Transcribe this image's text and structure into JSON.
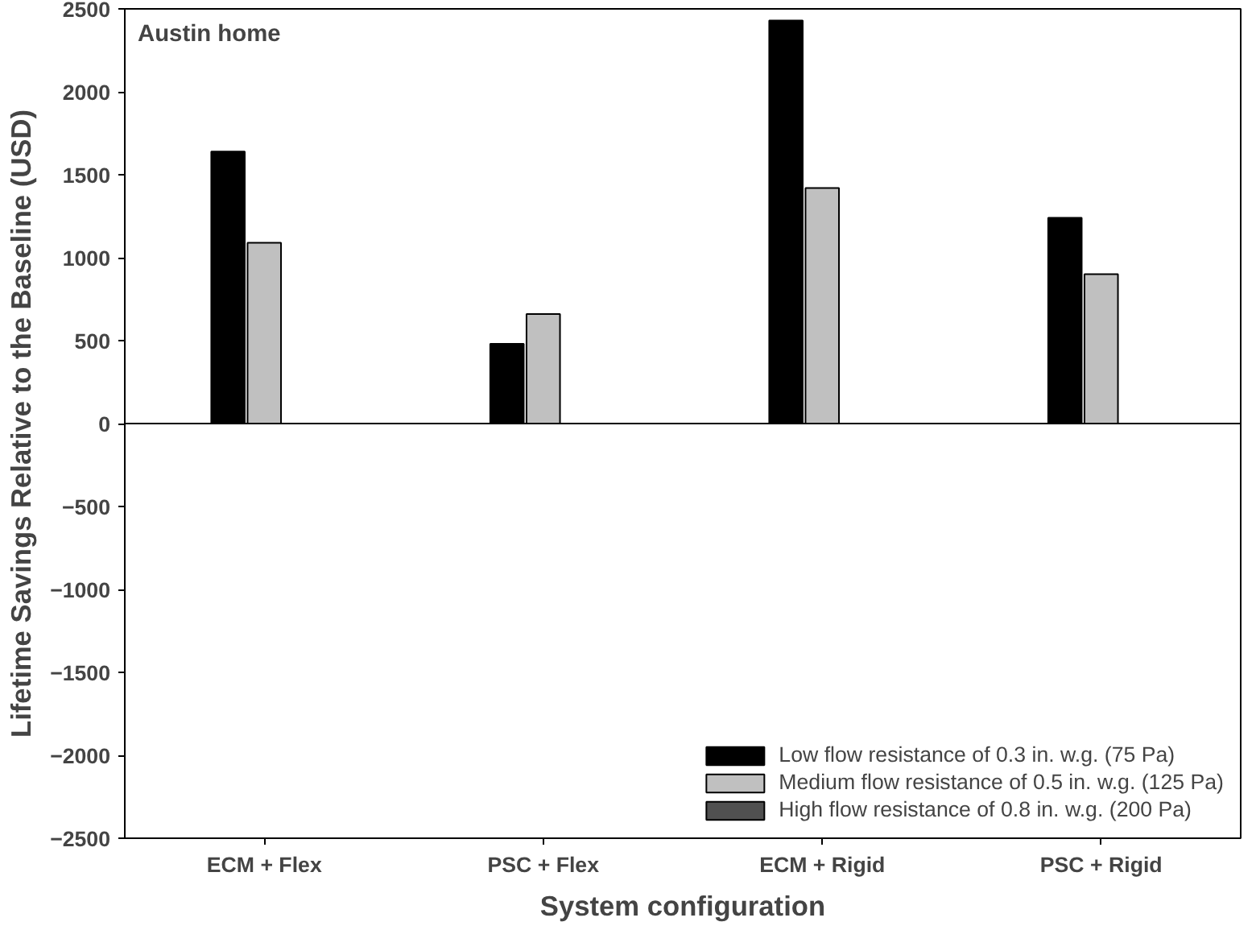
{
  "chart_data": {
    "type": "bar",
    "xlabel": "System configuration",
    "ylabel": "Lifetime Savings Relative to the Baseline (USD)",
    "categories": [
      "ECM + Flex",
      "PSC + Flex",
      "ECM + Rigid",
      "PSC + Rigid"
    ],
    "series": [
      {
        "name": "Low flow resistance of 0.3 in. w.g. (75 Pa)",
        "color": "#000000",
        "values": [
          1640,
          480,
          2430,
          1240
        ]
      },
      {
        "name": "Medium flow resistance of 0.5 in. w.g. (125 Pa)",
        "color": "#c0c0c0",
        "values": [
          1090,
          660,
          1420,
          900
        ]
      },
      {
        "name": "High flow resistance of 0.8 in. w.g. (200 Pa)",
        "color": "#505050",
        "values": [
          null,
          null,
          null,
          null
        ]
      }
    ],
    "ylim": [
      -2500,
      2500
    ],
    "yticks": [
      -2500,
      -2000,
      -1500,
      -1000,
      -500,
      0,
      500,
      1000,
      1500,
      2000,
      2500
    ],
    "annotations": [
      "Austin home"
    ],
    "ref_lines": [
      {
        "axis": "y",
        "value": 0,
        "color": "#000000"
      }
    ],
    "grid": false,
    "legend": "bottom right"
  }
}
